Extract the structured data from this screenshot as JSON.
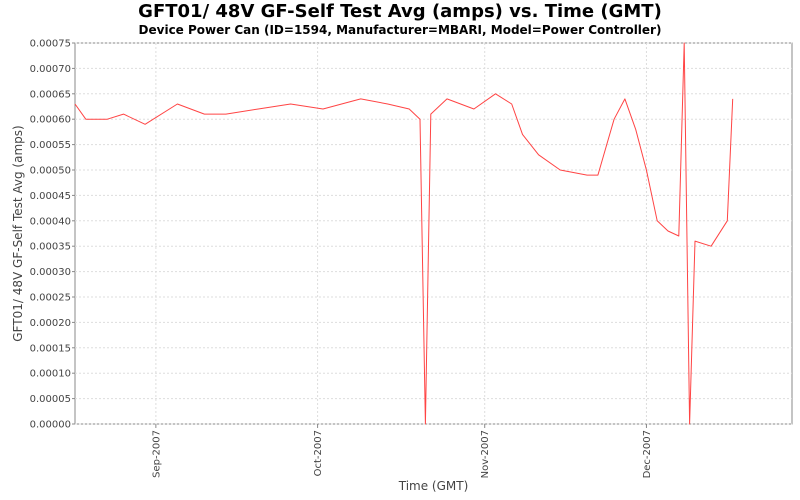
{
  "chart_data": {
    "type": "line",
    "title": "GFT01/ 48V GF-Self Test Avg (amps) vs. Time (GMT)",
    "subtitle": "Device Power Can (ID=1594, Manufacturer=MBARI, Model=Power Controller)",
    "xlabel": "Time (GMT)",
    "ylabel": "GFT01/ 48V GF-Self Test Avg (amps)",
    "x_range": [
      "2007-08-17",
      "2007-12-28"
    ],
    "ylim": [
      0,
      0.00075
    ],
    "y_ticks": [
      "0.00000",
      "0.00005",
      "0.00010",
      "0.00015",
      "0.00020",
      "0.00025",
      "0.00030",
      "0.00035",
      "0.00040",
      "0.00045",
      "0.00050",
      "0.00055",
      "0.00060",
      "0.00065",
      "0.00070",
      "0.00075"
    ],
    "x_ticks": [
      {
        "label": "Sep-2007",
        "date": "2007-09-01"
      },
      {
        "label": "Oct-2007",
        "date": "2007-10-01"
      },
      {
        "label": "Nov-2007",
        "date": "2007-11-01"
      },
      {
        "label": "Dec-2007",
        "date": "2007-12-01"
      }
    ],
    "grid": true,
    "line_color": "#ff4444",
    "series": [
      {
        "points": [
          [
            "2007-08-17",
            0.00063
          ],
          [
            "2007-08-19",
            0.0006
          ],
          [
            "2007-08-23",
            0.0006
          ],
          [
            "2007-08-26",
            0.00061
          ],
          [
            "2007-08-30",
            0.00059
          ],
          [
            "2007-09-05",
            0.00063
          ],
          [
            "2007-09-10",
            0.00061
          ],
          [
            "2007-09-14",
            0.00061
          ],
          [
            "2007-09-20",
            0.00062
          ],
          [
            "2007-09-26",
            0.00063
          ],
          [
            "2007-10-02",
            0.00062
          ],
          [
            "2007-10-09",
            0.00064
          ],
          [
            "2007-10-14",
            0.00063
          ],
          [
            "2007-10-18",
            0.00062
          ],
          [
            "2007-10-20",
            0.0006
          ],
          [
            "2007-10-21",
            0.0
          ],
          [
            "2007-10-22",
            0.00061
          ],
          [
            "2007-10-25",
            0.00064
          ],
          [
            "2007-10-30",
            0.00062
          ],
          [
            "2007-11-03",
            0.00065
          ],
          [
            "2007-11-06",
            0.00063
          ],
          [
            "2007-11-08",
            0.00057
          ],
          [
            "2007-11-11",
            0.00053
          ],
          [
            "2007-11-15",
            0.0005
          ],
          [
            "2007-11-20",
            0.00049
          ],
          [
            "2007-11-22",
            0.00049
          ],
          [
            "2007-11-25",
            0.0006
          ],
          [
            "2007-11-27",
            0.00064
          ],
          [
            "2007-11-29",
            0.00058
          ],
          [
            "2007-12-01",
            0.0005
          ],
          [
            "2007-12-03",
            0.0004
          ],
          [
            "2007-12-05",
            0.00038
          ],
          [
            "2007-12-07",
            0.00037
          ],
          [
            "2007-12-08",
            0.00075
          ],
          [
            "2007-12-09",
            0.0
          ],
          [
            "2007-12-10",
            0.00036
          ],
          [
            "2007-12-13",
            0.00035
          ],
          [
            "2007-12-16",
            0.0004
          ],
          [
            "2007-12-17",
            0.00064
          ]
        ]
      }
    ]
  }
}
